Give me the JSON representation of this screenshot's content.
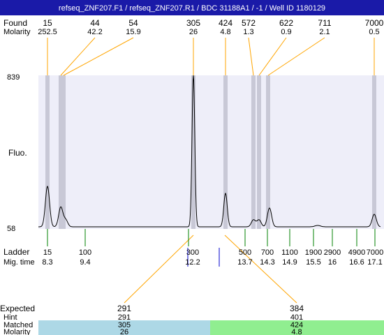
{
  "header": {
    "title": "refseq_ZNF207.F1 / refseq_ZNF207.R1 / BDC 31188A1 / -1 / Well ID 1180129"
  },
  "found": {
    "label": "Found",
    "sizes": [
      15,
      44,
      54,
      305,
      424,
      572,
      622,
      711,
      7000
    ],
    "molarity_label": "Molarity",
    "molarities": [
      252.5,
      42.2,
      15.9,
      26,
      4.8,
      1.3,
      0.9,
      2.1,
      0.5
    ]
  },
  "plot": {
    "y_max": 839,
    "y_min": 58,
    "y_label": "Fluo."
  },
  "ladder": {
    "label": "Ladder",
    "mig_label": "Mig. time",
    "sizes": [
      15,
      100,
      300,
      500,
      700,
      1100,
      1900,
      2900,
      4900,
      7000
    ],
    "mig_times": [
      8.3,
      9.4,
      12.2,
      13.7,
      14.3,
      14.9,
      15.5,
      16,
      16.6,
      17.1
    ]
  },
  "expected": {
    "label": "Expected",
    "hint_label": "Hint",
    "matched_label": "Matched",
    "molarity_label": "Molarity",
    "columns": [
      {
        "expected": 291,
        "hint": 291,
        "matched": 305,
        "molarity": 26
      },
      {
        "expected": 384,
        "hint": 401,
        "matched": 424,
        "molarity": 4.8
      }
    ]
  }
}
